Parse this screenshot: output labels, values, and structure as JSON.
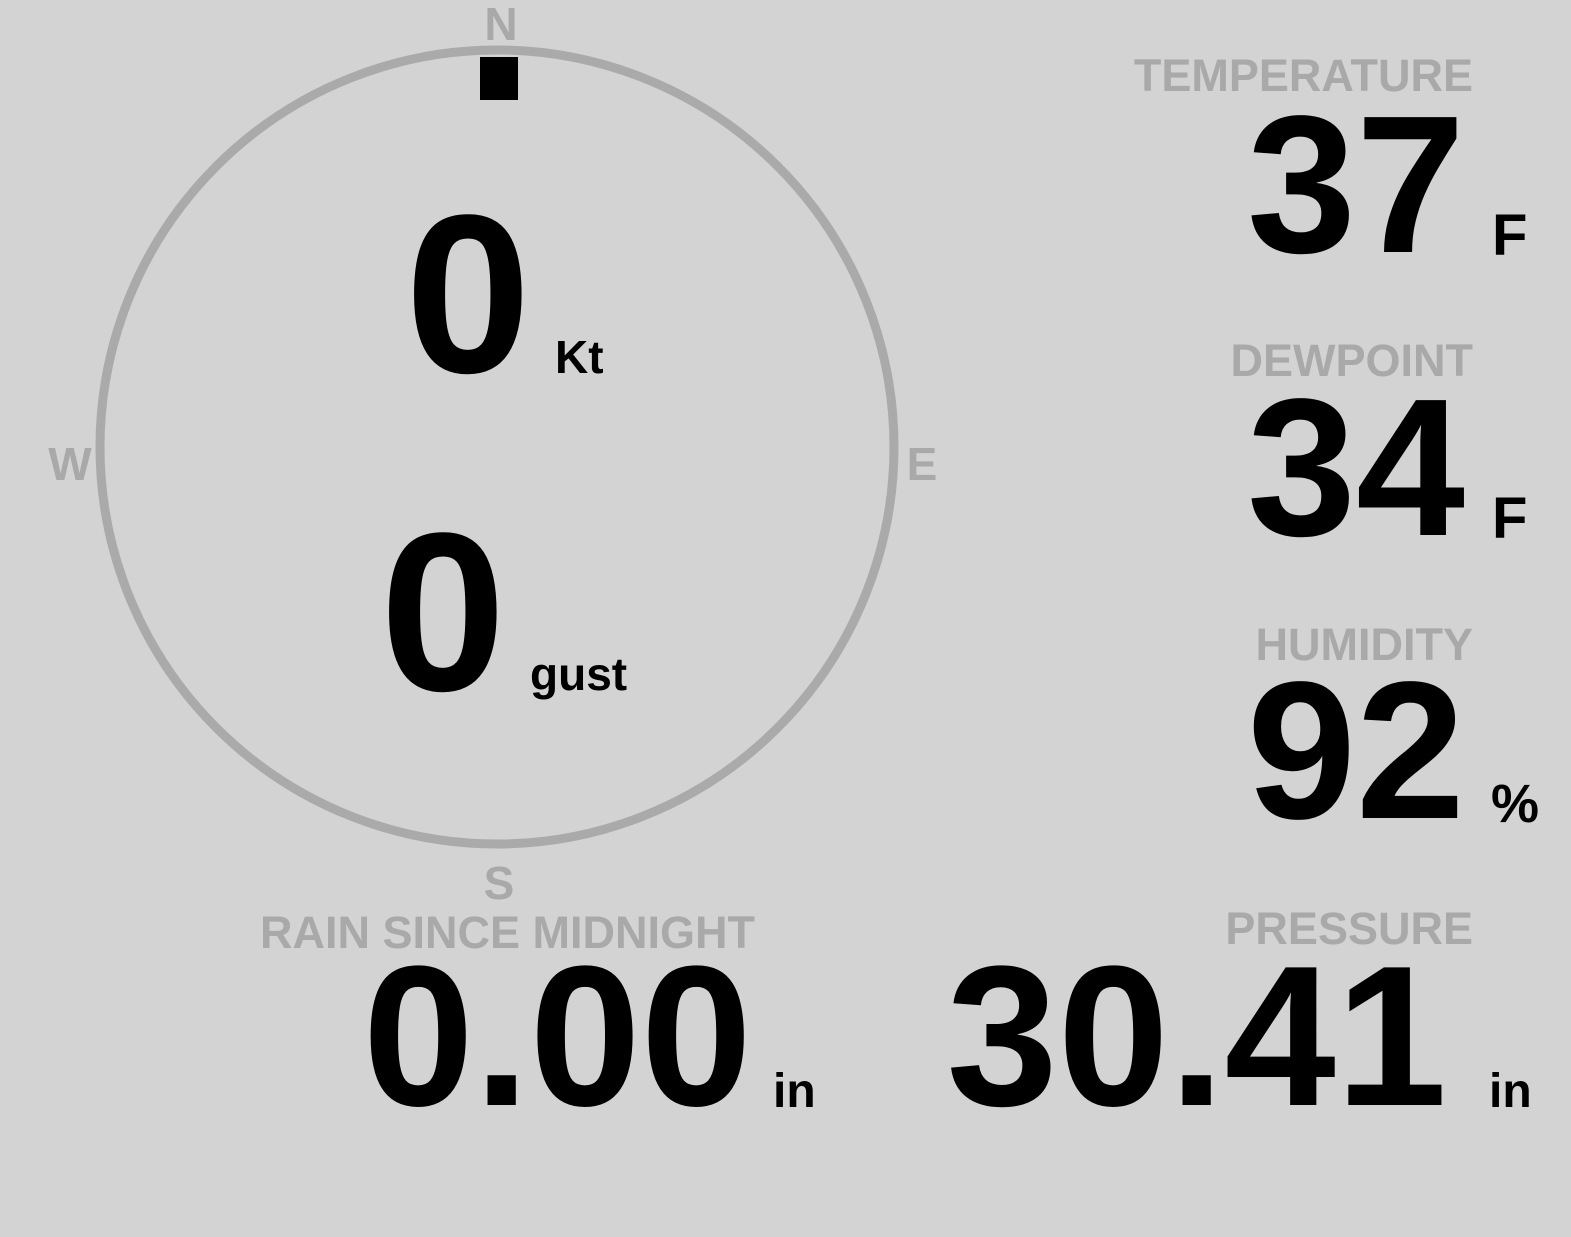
{
  "colors": {
    "background": "#d3d3d3",
    "label": "#a9a9a9",
    "value": "#000000",
    "compass_ring": "#aaaaaa"
  },
  "wind": {
    "compass": {
      "n": "N",
      "e": "E",
      "s": "S",
      "w": "W"
    },
    "direction_deg": 0,
    "speed": "0",
    "speed_unit": "Kt",
    "gust": "0",
    "gust_label": "gust"
  },
  "temperature": {
    "label": "TEMPERATURE",
    "value": "37",
    "unit": "F"
  },
  "dewpoint": {
    "label": "DEWPOINT",
    "value": "34",
    "unit": "F"
  },
  "humidity": {
    "label": "HUMIDITY",
    "value": "92",
    "unit": "%"
  },
  "rain": {
    "label": "RAIN SINCE MIDNIGHT",
    "value": "0.00",
    "unit": "in"
  },
  "pressure": {
    "label": "PRESSURE",
    "value": "30.41",
    "unit": "in"
  }
}
